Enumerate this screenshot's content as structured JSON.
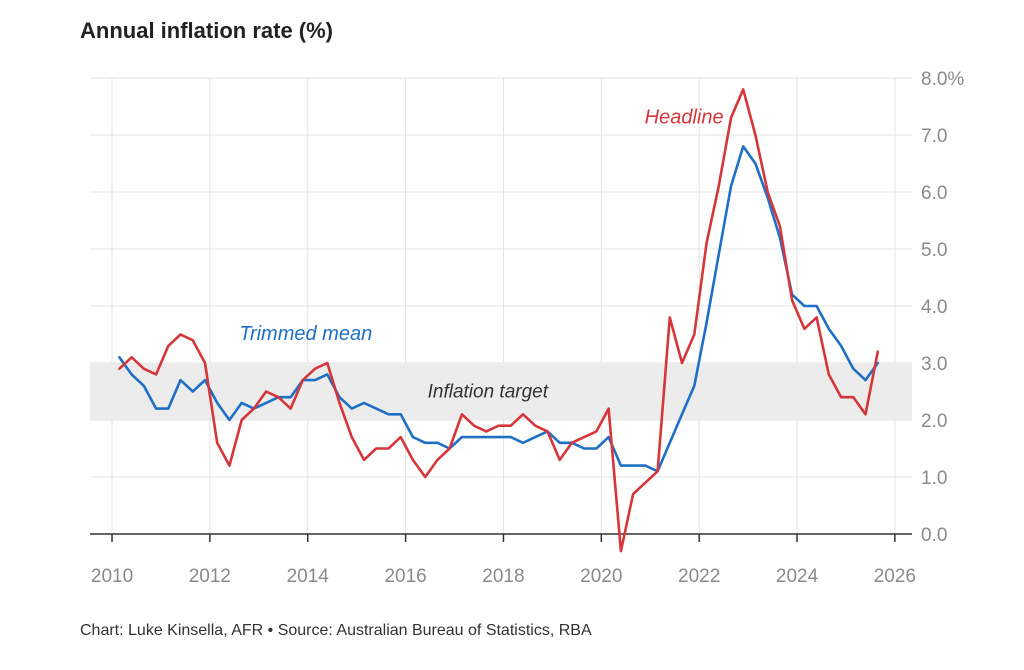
{
  "chart_data": {
    "type": "line",
    "title": "Annual inflation rate (%)",
    "xlabel": "",
    "ylabel": "",
    "xlim": [
      2009.55,
      2026.35
    ],
    "ylim": [
      0,
      8
    ],
    "x_ticks": [
      "2010",
      "2012",
      "2014",
      "2016",
      "2018",
      "2020",
      "2022",
      "2024",
      "2026"
    ],
    "y_ticks": [
      "0.0",
      "1.0",
      "2.0",
      "3.0",
      "4.0",
      "5.0",
      "6.0",
      "7.0",
      "8.0%"
    ],
    "target_band": {
      "label": "Inflation target",
      "low": 2.0,
      "high": 3.0
    },
    "series": [
      {
        "name": "Headline",
        "color": "#d6363a",
        "label_anchor": {
          "x": 2022.5,
          "y": 7.2
        },
        "points": [
          [
            2010.15,
            2.9
          ],
          [
            2010.4,
            3.1
          ],
          [
            2010.65,
            2.9
          ],
          [
            2010.9,
            2.8
          ],
          [
            2011.15,
            3.3
          ],
          [
            2011.4,
            3.5
          ],
          [
            2011.65,
            3.4
          ],
          [
            2011.9,
            3.0
          ],
          [
            2012.15,
            1.6
          ],
          [
            2012.4,
            1.2
          ],
          [
            2012.65,
            2.0
          ],
          [
            2012.9,
            2.2
          ],
          [
            2013.15,
            2.5
          ],
          [
            2013.4,
            2.4
          ],
          [
            2013.65,
            2.2
          ],
          [
            2013.9,
            2.7
          ],
          [
            2014.15,
            2.9
          ],
          [
            2014.4,
            3.0
          ],
          [
            2014.65,
            2.3
          ],
          [
            2014.9,
            1.7
          ],
          [
            2015.15,
            1.3
          ],
          [
            2015.4,
            1.5
          ],
          [
            2015.65,
            1.5
          ],
          [
            2015.9,
            1.7
          ],
          [
            2016.15,
            1.3
          ],
          [
            2016.4,
            1.0
          ],
          [
            2016.65,
            1.3
          ],
          [
            2016.9,
            1.5
          ],
          [
            2017.15,
            2.1
          ],
          [
            2017.4,
            1.9
          ],
          [
            2017.65,
            1.8
          ],
          [
            2017.9,
            1.9
          ],
          [
            2018.15,
            1.9
          ],
          [
            2018.4,
            2.1
          ],
          [
            2018.65,
            1.9
          ],
          [
            2018.9,
            1.8
          ],
          [
            2019.15,
            1.3
          ],
          [
            2019.4,
            1.6
          ],
          [
            2019.65,
            1.7
          ],
          [
            2019.9,
            1.8
          ],
          [
            2020.15,
            2.2
          ],
          [
            2020.4,
            -0.3
          ],
          [
            2020.65,
            0.7
          ],
          [
            2020.9,
            0.9
          ],
          [
            2021.15,
            1.1
          ],
          [
            2021.4,
            3.8
          ],
          [
            2021.65,
            3.0
          ],
          [
            2021.9,
            3.5
          ],
          [
            2022.15,
            5.1
          ],
          [
            2022.4,
            6.1
          ],
          [
            2022.65,
            7.3
          ],
          [
            2022.9,
            7.8
          ],
          [
            2023.15,
            7.0
          ],
          [
            2023.4,
            6.0
          ],
          [
            2023.65,
            5.4
          ],
          [
            2023.9,
            4.1
          ],
          [
            2024.15,
            3.6
          ],
          [
            2024.4,
            3.8
          ],
          [
            2024.65,
            2.8
          ],
          [
            2024.9,
            2.4
          ],
          [
            2025.15,
            2.4
          ],
          [
            2025.4,
            2.1
          ],
          [
            2025.65,
            3.2
          ]
        ]
      },
      {
        "name": "Trimmed mean",
        "color": "#1f6fc6",
        "label_anchor": {
          "x": 2012.6,
          "y": 3.4
        },
        "points": [
          [
            2010.15,
            3.1
          ],
          [
            2010.4,
            2.8
          ],
          [
            2010.65,
            2.6
          ],
          [
            2010.9,
            2.2
          ],
          [
            2011.15,
            2.2
          ],
          [
            2011.4,
            2.7
          ],
          [
            2011.65,
            2.5
          ],
          [
            2011.9,
            2.7
          ],
          [
            2012.15,
            2.3
          ],
          [
            2012.4,
            2.0
          ],
          [
            2012.65,
            2.3
          ],
          [
            2012.9,
            2.2
          ],
          [
            2013.15,
            2.3
          ],
          [
            2013.4,
            2.4
          ],
          [
            2013.65,
            2.4
          ],
          [
            2013.9,
            2.7
          ],
          [
            2014.15,
            2.7
          ],
          [
            2014.4,
            2.8
          ],
          [
            2014.65,
            2.4
          ],
          [
            2014.9,
            2.2
          ],
          [
            2015.15,
            2.3
          ],
          [
            2015.4,
            2.2
          ],
          [
            2015.65,
            2.1
          ],
          [
            2015.9,
            2.1
          ],
          [
            2016.15,
            1.7
          ],
          [
            2016.4,
            1.6
          ],
          [
            2016.65,
            1.6
          ],
          [
            2016.9,
            1.5
          ],
          [
            2017.15,
            1.7
          ],
          [
            2017.4,
            1.7
          ],
          [
            2017.65,
            1.7
          ],
          [
            2017.9,
            1.7
          ],
          [
            2018.15,
            1.7
          ],
          [
            2018.4,
            1.6
          ],
          [
            2018.65,
            1.7
          ],
          [
            2018.9,
            1.8
          ],
          [
            2019.15,
            1.6
          ],
          [
            2019.4,
            1.6
          ],
          [
            2019.65,
            1.5
          ],
          [
            2019.9,
            1.5
          ],
          [
            2020.15,
            1.7
          ],
          [
            2020.4,
            1.2
          ],
          [
            2020.65,
            1.2
          ],
          [
            2020.9,
            1.2
          ],
          [
            2021.15,
            1.1
          ],
          [
            2021.4,
            1.6
          ],
          [
            2021.65,
            2.1
          ],
          [
            2021.9,
            2.6
          ],
          [
            2022.15,
            3.7
          ],
          [
            2022.4,
            4.9
          ],
          [
            2022.65,
            6.1
          ],
          [
            2022.9,
            6.8
          ],
          [
            2023.15,
            6.5
          ],
          [
            2023.4,
            5.9
          ],
          [
            2023.65,
            5.2
          ],
          [
            2023.9,
            4.2
          ],
          [
            2024.15,
            4.0
          ],
          [
            2024.4,
            4.0
          ],
          [
            2024.65,
            3.6
          ],
          [
            2024.9,
            3.3
          ],
          [
            2025.15,
            2.9
          ],
          [
            2025.4,
            2.7
          ],
          [
            2025.65,
            3.0
          ]
        ]
      }
    ]
  },
  "source": "Chart: Luke Kinsella, AFR • Source: Australian Bureau of Statistics, RBA"
}
